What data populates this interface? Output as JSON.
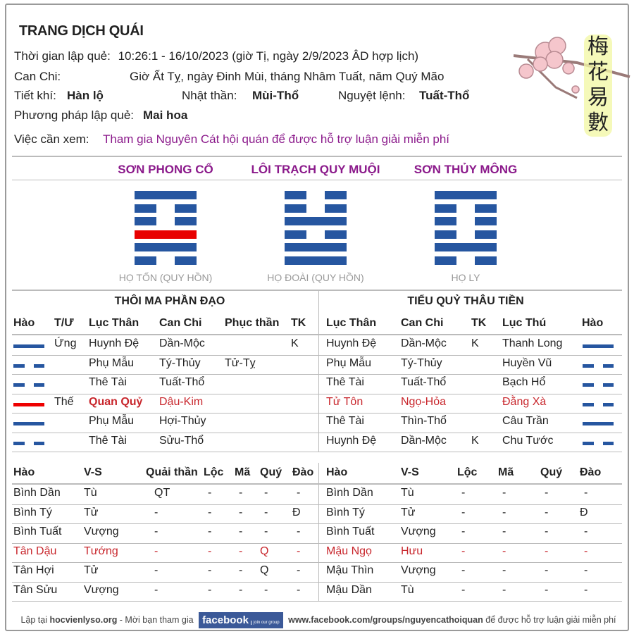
{
  "header": {
    "title": "TRANG DỊCH QUÁI",
    "time_label": "Thời gian lập quẻ:",
    "time_value": "10:26:1 - 16/10/2023 (giờ Tị, ngày 2/9/2023 ÂD hợp lịch)",
    "canchi_label": "Can Chi:",
    "canchi_value": "Giờ Ất Tỵ, ngày Đinh Mùi, tháng Nhâm Tuất, năm Quý Mão",
    "tietkhi_label": "Tiết khí:",
    "tietkhi_value": "Hàn lộ",
    "nhatthan_label": "Nhật thần:",
    "nhatthan_value": "Mùi-Thổ",
    "nguyetlenh_label": "Nguyệt lệnh:",
    "nguyetlenh_value": "Tuất-Thổ",
    "method_label": "Phương pháp lập quẻ:",
    "method_value": "Mai hoa",
    "question_label": "Việc cần xem:",
    "question_value": "Tham gia Nguyên Cát hội quán để được hỗ trợ luận giải miễn phí",
    "logo_text": "梅花易數"
  },
  "hexagrams": [
    {
      "name": "SƠN PHONG CỔ",
      "family": "HỌ TỐN (QUY HỒN)",
      "lines_top_to_bottom": [
        "yang",
        "yin",
        "yin",
        "yang-moving",
        "yang",
        "yin"
      ]
    },
    {
      "name": "LÔI TRẠCH QUY MUỘI",
      "family": "HỌ ĐOÀI (QUY HỒN)",
      "lines_top_to_bottom": [
        "yin",
        "yin",
        "yang",
        "yin",
        "yang",
        "yang"
      ]
    },
    {
      "name": "SƠN THỦY MÔNG",
      "family": "HỌ LY",
      "lines_top_to_bottom": [
        "yang",
        "yin",
        "yin",
        "yin",
        "yang",
        "yin"
      ]
    }
  ],
  "left_title": "THÔI MA PHẦN ĐẠO",
  "right_title": "TIỂU QUỶ THÂU TIỀN",
  "table1": {
    "left_headers": [
      "Hào",
      "T/Ư",
      "Lục Thân",
      "Can Chi",
      "Phục thần",
      "TK"
    ],
    "right_headers": [
      "Lục Thân",
      "Can Chi",
      "TK",
      "Lục Thú",
      "Hào"
    ],
    "rows": [
      {
        "hao": "yang",
        "tu": "Ứng",
        "lucthan": "Huynh Đệ",
        "canchi": "Dần-Mộc",
        "phucthan": "",
        "tk": "K",
        "r_lucthan": "Huynh Đệ",
        "r_canchi": "Dần-Mộc",
        "r_tk": "K",
        "r_lucthu": "Thanh Long",
        "r_hao": "yang",
        "highlight": false
      },
      {
        "hao": "yin",
        "tu": "",
        "lucthan": "Phụ Mẫu",
        "canchi": "Tý-Thủy",
        "phucthan": "Tử-Tỵ",
        "tk": "",
        "r_lucthan": "Phụ Mẫu",
        "r_canchi": "Tý-Thủy",
        "r_tk": "",
        "r_lucthu": "Huyền Vũ",
        "r_hao": "yin",
        "highlight": false
      },
      {
        "hao": "yin",
        "tu": "",
        "lucthan": "Thê Tài",
        "canchi": "Tuất-Thổ",
        "phucthan": "",
        "tk": "",
        "r_lucthan": "Thê Tài",
        "r_canchi": "Tuất-Thổ",
        "r_tk": "",
        "r_lucthu": "Bạch Hổ",
        "r_hao": "yin",
        "highlight": false
      },
      {
        "hao": "yang-moving",
        "tu": "Thế",
        "lucthan": "Quan Quỷ",
        "canchi": "Dậu-Kim",
        "phucthan": "",
        "tk": "",
        "r_lucthan": "Tử Tôn",
        "r_canchi": "Ngọ-Hỏa",
        "r_tk": "",
        "r_lucthu": "Đằng Xà",
        "r_hao": "yin",
        "highlight": true
      },
      {
        "hao": "yang",
        "tu": "",
        "lucthan": "Phụ Mẫu",
        "canchi": "Hợi-Thủy",
        "phucthan": "",
        "tk": "",
        "r_lucthan": "Thê Tài",
        "r_canchi": "Thìn-Thổ",
        "r_tk": "",
        "r_lucthu": "Câu Trần",
        "r_hao": "yang",
        "highlight": false
      },
      {
        "hao": "yin",
        "tu": "",
        "lucthan": "Thê Tài",
        "canchi": "Sửu-Thổ",
        "phucthan": "",
        "tk": "",
        "r_lucthan": "Huynh Đệ",
        "r_canchi": "Dần-Mộc",
        "r_tk": "K",
        "r_lucthu": "Chu Tước",
        "r_hao": "yin",
        "highlight": false
      }
    ]
  },
  "table2": {
    "left_headers": [
      "Hào",
      "V-S",
      "Quải thần",
      "Lộc",
      "Mã",
      "Quý",
      "Đào"
    ],
    "right_headers": [
      "Hào",
      "V-S",
      "Lộc",
      "Mã",
      "Quý",
      "Đào"
    ],
    "left_rows": [
      [
        "Bình Dần",
        "Tù",
        "QT",
        "-",
        "-",
        "-",
        "-"
      ],
      [
        "Bình Tý",
        "Tử",
        "-",
        "-",
        "-",
        "-",
        "Đ"
      ],
      [
        "Bình Tuất",
        "Vượng",
        "-",
        "-",
        "-",
        "-",
        "-"
      ],
      [
        "Tân Dậu",
        "Tướng",
        "-",
        "-",
        "-",
        "Q",
        "-"
      ],
      [
        "Tân Hợi",
        "Tử",
        "-",
        "-",
        "-",
        "Q",
        "-"
      ],
      [
        "Tân Sửu",
        "Vượng",
        "-",
        "-",
        "-",
        "-",
        "-"
      ]
    ],
    "right_rows": [
      [
        "Bình Dần",
        "Tù",
        "-",
        "-",
        "-",
        "-"
      ],
      [
        "Bình Tý",
        "Tử",
        "-",
        "-",
        "-",
        "Đ"
      ],
      [
        "Bình Tuất",
        "Vượng",
        "-",
        "-",
        "-",
        "-"
      ],
      [
        "Mậu Ngọ",
        "Hưu",
        "-",
        "-",
        "-",
        "-"
      ],
      [
        "Mậu Thìn",
        "Vượng",
        "-",
        "-",
        "-",
        "-"
      ],
      [
        "Mậu Dần",
        "Tù",
        "-",
        "-",
        "-",
        "-"
      ]
    ],
    "highlight_row": 3
  },
  "footer": {
    "prefix": "Lập tại ",
    "site": "hocvienlyso.org",
    "middle": " - Mời bạn tham gia",
    "fb_label": "facebook",
    "fb_join": "join our group",
    "url": "www.facebook.com/groups/nguyencathoiquan",
    "suffix": " để được hỗ trợ luận giải miễn phí"
  },
  "colors": {
    "line": "#2656a0",
    "moving": "#e80000",
    "highlight_text": "#c8262c",
    "title_purple": "#8b1a8b"
  }
}
